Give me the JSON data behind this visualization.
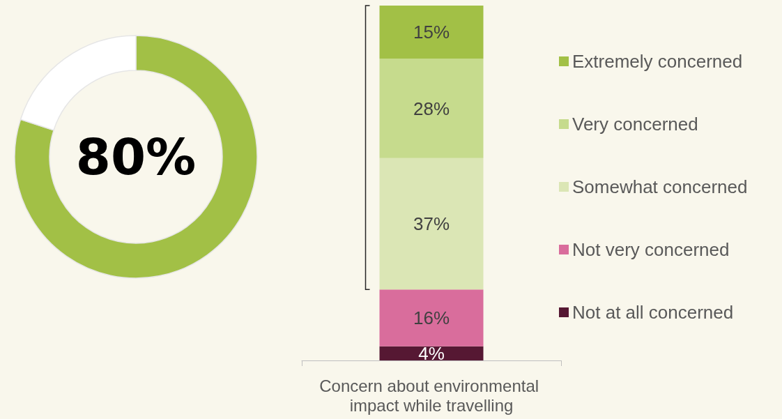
{
  "chart_data": [
    {
      "type": "donut",
      "categories": [
        null,
        null
      ],
      "values": [
        80,
        20
      ],
      "colors": [
        "#a2c046",
        "#ffffff"
      ],
      "annotations": [
        "80%"
      ]
    },
    {
      "type": "bar",
      "stacked": true,
      "categories": [
        "Concern about environmental impact while travelling"
      ],
      "legend": "right",
      "series": [
        {
          "name": "Not at all concerned",
          "color": "#561833",
          "values": [
            4
          ],
          "value_labels": [
            "4%"
          ]
        },
        {
          "name": "Not very concerned",
          "color": "#d96d9c",
          "values": [
            16
          ],
          "value_labels": [
            "16%"
          ]
        },
        {
          "name": "Somewhat concerned",
          "color": "#dbe6b5",
          "values": [
            37
          ],
          "value_labels": [
            "37%"
          ]
        },
        {
          "name": "Very concerned",
          "color": "#c6db8d",
          "values": [
            28
          ],
          "value_labels": [
            "28%"
          ]
        },
        {
          "name": "Extremely concerned",
          "color": "#a2c046",
          "values": [
            15
          ],
          "value_labels": [
            "15%"
          ]
        }
      ]
    }
  ]
}
